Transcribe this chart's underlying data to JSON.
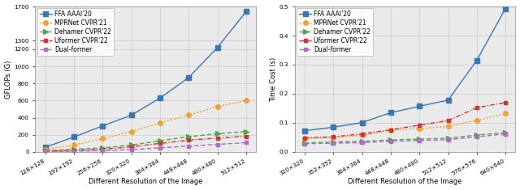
{
  "left": {
    "x_labels": [
      "128×128",
      "192×192",
      "256×256",
      "320×320",
      "384×384",
      "448×448",
      "480×480",
      "512×512"
    ],
    "x_vals": [
      0,
      1,
      2,
      3,
      4,
      5,
      6,
      7
    ],
    "series": [
      {
        "label": "FFA AAAI'20",
        "y": [
          55,
          175,
          305,
          430,
          630,
          870,
          1220,
          1640
        ],
        "color": "#3a78b5",
        "linestyle": "solid",
        "marker": "s",
        "markersize": 4
      },
      {
        "label": "MPRNet CVPR'21",
        "y": [
          28,
          82,
          155,
          240,
          340,
          430,
          530,
          600
        ],
        "color": "#f5a031",
        "linestyle": "dotted",
        "marker": "o",
        "markersize": 4
      },
      {
        "label": "Dehamer CVPR'22",
        "y": [
          15,
          30,
          48,
          80,
          130,
          178,
          212,
          238
        ],
        "color": "#4aaa4a",
        "linestyle": "dashed",
        "marker": ">",
        "markersize": 4
      },
      {
        "label": "Uformer CVPR'22",
        "y": [
          8,
          18,
          32,
          60,
          100,
          138,
          162,
          183
        ],
        "color": "#d63030",
        "linestyle": "dashdot",
        "marker": "s",
        "markersize": 3
      },
      {
        "label": "Dual-former",
        "y": [
          4,
          8,
          15,
          28,
          48,
          68,
          88,
          108
        ],
        "color": "#b06ac8",
        "linestyle": "dashed",
        "marker": "s",
        "markersize": 3
      }
    ],
    "ylabel": "GFLOPs (G)",
    "xlabel": "Different Resolution of the Image",
    "ylim": [
      0,
      1700
    ],
    "yticks": [
      0,
      200,
      400,
      600,
      800,
      1000,
      1200,
      1300,
      1700
    ]
  },
  "right": {
    "x_labels": [
      "320×320",
      "352×352",
      "384×384",
      "448×448",
      "480×480",
      "512×512",
      "576×576",
      "640×640"
    ],
    "x_vals": [
      0,
      1,
      2,
      3,
      4,
      5,
      6,
      7
    ],
    "series": [
      {
        "label": "FFA AAAI'20",
        "y": [
          0.073,
          0.085,
          0.101,
          0.135,
          0.157,
          0.178,
          0.315,
          0.493
        ],
        "color": "#3a78b5",
        "linestyle": "solid",
        "marker": "s",
        "markersize": 4
      },
      {
        "label": "MPRNet CVPR'21",
        "y": [
          0.047,
          0.05,
          0.057,
          0.075,
          0.08,
          0.088,
          0.108,
          0.132
        ],
        "color": "#f5a031",
        "linestyle": "dotted",
        "marker": "o",
        "markersize": 4
      },
      {
        "label": "Dehamer CVPR'22",
        "y": [
          0.031,
          0.034,
          0.036,
          0.041,
          0.044,
          0.047,
          0.058,
          0.067
        ],
        "color": "#4aaa4a",
        "linestyle": "dashed",
        "marker": ">",
        "markersize": 4
      },
      {
        "label": "Uformer CVPR'22",
        "y": [
          0.048,
          0.052,
          0.062,
          0.076,
          0.092,
          0.108,
          0.152,
          0.17
        ],
        "color": "#d63030",
        "linestyle": "dashdot",
        "marker": "s",
        "markersize": 3
      },
      {
        "label": "Dual-former",
        "y": [
          0.028,
          0.03,
          0.032,
          0.037,
          0.039,
          0.042,
          0.052,
          0.062
        ],
        "color": "#b06ac8",
        "linestyle": "dashed",
        "marker": "s",
        "markersize": 3
      }
    ],
    "ylabel": "Time Cost (s)",
    "xlabel": "Different Resolution of the Image",
    "ylim": [
      0.0,
      0.5
    ],
    "yticks": [
      0.0,
      0.1,
      0.2,
      0.3,
      0.4,
      0.5
    ]
  },
  "linewidth": 1.0,
  "fontsize_label": 6.0,
  "fontsize_tick": 5.2,
  "fontsize_legend": 5.5,
  "grid_color": "#d0d0d0",
  "bg_color": "#eaeaea"
}
